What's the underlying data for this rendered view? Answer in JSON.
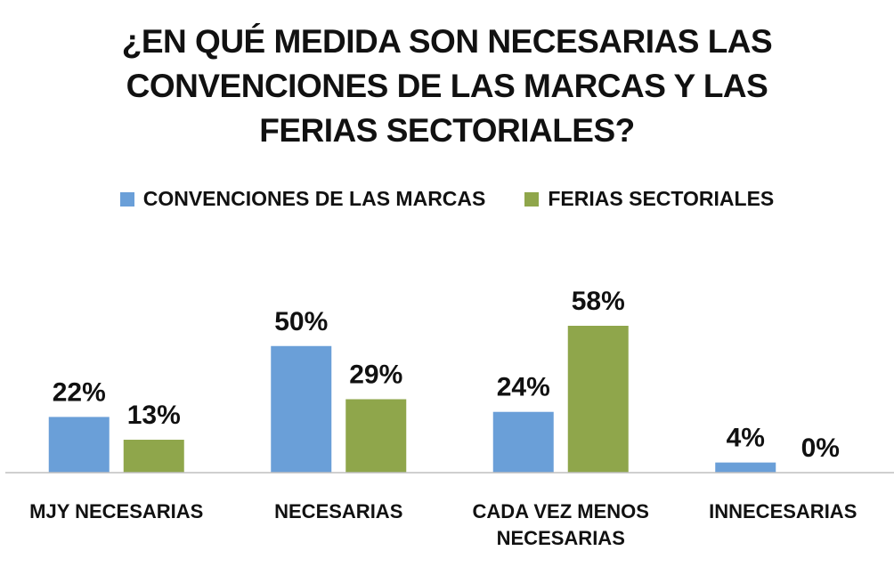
{
  "chart_data": {
    "type": "bar",
    "title_lines": [
      "¿EN QUÉ MEDIDA SON NECESARIAS LAS",
      "CONVENCIONES DE LAS MARCAS Y LAS",
      "FERIAS SECTORIALES?"
    ],
    "categories": [
      [
        "MJY NECESARIAS"
      ],
      [
        "NECESARIAS"
      ],
      [
        "CADA VEZ MENOS",
        "NECESARIAS"
      ],
      [
        "INNECESARIAS"
      ]
    ],
    "series": [
      {
        "name": "CONVENCIONES DE LAS MARCAS",
        "color": "#6a9fd8",
        "values": [
          22,
          50,
          24,
          4
        ],
        "labels": [
          "22%",
          "50%",
          "24%",
          "4%"
        ]
      },
      {
        "name": "FERIAS SECTORIALES",
        "color": "#8fa64b",
        "values": [
          13,
          29,
          58,
          0
        ],
        "labels": [
          "13%",
          "29%",
          "58%",
          "0%"
        ]
      }
    ],
    "xlabel": "",
    "ylabel": "",
    "ylim": [
      0,
      60
    ],
    "grid": false,
    "legend_position": "top-center"
  }
}
